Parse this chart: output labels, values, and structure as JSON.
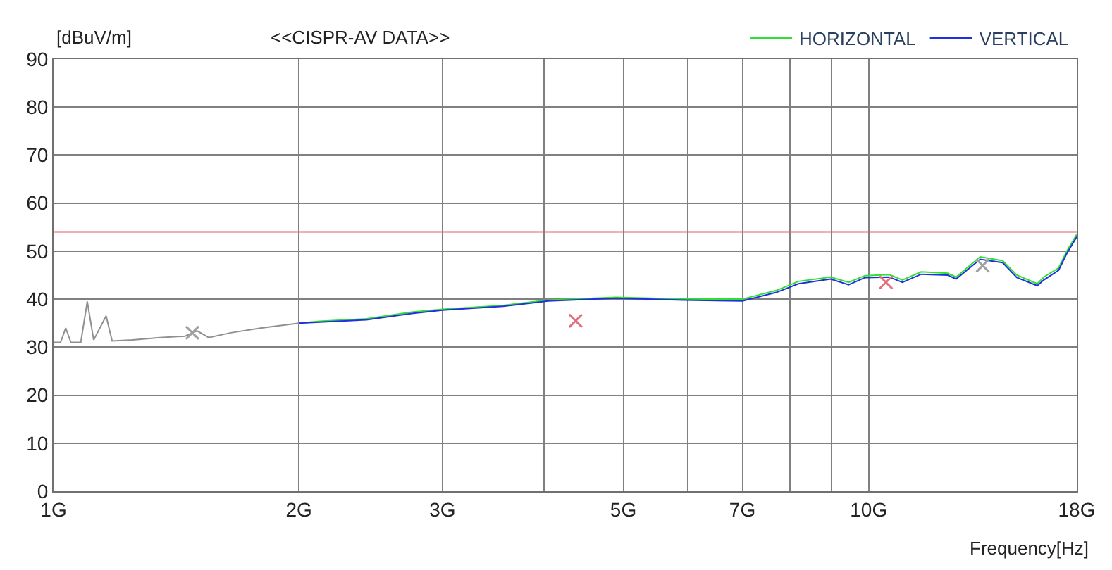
{
  "chart_data": {
    "type": "line",
    "title": "<<CISPR-AV DATA>>",
    "ylabel": "[dBuV/m]",
    "xlabel": "Frequency[Hz]",
    "log": "x",
    "xlim": [
      1,
      18
    ],
    "ylim": [
      0,
      90
    ],
    "xticks": [
      {
        "value": 1,
        "label": "1G"
      },
      {
        "value": 2,
        "label": "2G"
      },
      {
        "value": 3,
        "label": "3G"
      },
      {
        "value": 4,
        "label": null
      },
      {
        "value": 5,
        "label": "5G"
      },
      {
        "value": 6,
        "label": null
      },
      {
        "value": 7,
        "label": "7G"
      },
      {
        "value": 8,
        "label": null
      },
      {
        "value": 9,
        "label": null
      },
      {
        "value": 10,
        "label": "10G"
      },
      {
        "value": 18,
        "label": "18G"
      }
    ],
    "yticks": [
      0,
      10,
      20,
      30,
      40,
      50,
      60,
      70,
      80,
      90
    ],
    "grid": true,
    "legend": "top right",
    "ref_lines": [
      {
        "axis": "y",
        "value": 54,
        "color": "#e06070"
      }
    ],
    "series": [
      {
        "color": "#909090",
        "x": [
          1.0,
          1.02,
          1.035,
          1.05,
          1.08,
          1.1,
          1.12,
          1.16,
          1.18,
          1.25,
          1.35,
          1.45,
          1.5,
          1.55,
          1.65,
          1.8,
          2.0
        ],
        "values": [
          31,
          31,
          34,
          31,
          31,
          39.5,
          31.5,
          36.5,
          31.3,
          31.5,
          32,
          32.3,
          33.4,
          32,
          33,
          34,
          35
        ]
      },
      {
        "name": "HORIZONTAL",
        "color": "#30e030",
        "x": [
          2.0,
          2.12,
          2.42,
          2.75,
          3.0,
          3.56,
          4.04,
          4.9,
          5.93,
          7.0,
          7.7,
          8.2,
          8.98,
          9.45,
          9.9,
          10.6,
          11.0,
          11.6,
          12.5,
          12.8,
          13.7,
          14.6,
          15.2,
          16.1,
          16.4,
          17.1,
          17.5,
          18.0
        ],
        "values": [
          35,
          35.4,
          35.9,
          37.3,
          37.9,
          38.7,
          39.8,
          40.4,
          40,
          40,
          41.8,
          43.7,
          44.6,
          43.5,
          44.9,
          45.1,
          44,
          45.7,
          45.4,
          44.6,
          48.8,
          48,
          45,
          43.2,
          44.6,
          46.5,
          50,
          53.5
        ]
      },
      {
        "name": "VERTICAL",
        "color": "#2030e0",
        "x": [
          2.0,
          2.12,
          2.42,
          2.75,
          3.0,
          3.56,
          4.04,
          4.9,
          5.93,
          7.0,
          7.7,
          8.2,
          8.98,
          9.45,
          9.9,
          10.6,
          11.0,
          11.6,
          12.5,
          12.8,
          13.7,
          14.6,
          15.2,
          16.1,
          16.4,
          17.1,
          17.5,
          18.0
        ],
        "values": [
          35,
          35.2,
          35.7,
          37,
          37.7,
          38.5,
          39.6,
          40.2,
          39.8,
          39.6,
          41.4,
          43.2,
          44.2,
          43,
          44.5,
          44.6,
          43.5,
          45.2,
          45,
          44.2,
          48.3,
          47.6,
          44.5,
          42.8,
          44,
          46,
          49.5,
          53
        ]
      },
      {
        "type": "scatter",
        "color": "#e07080",
        "marker": "cross",
        "x": [
          4.37,
          10.5
        ],
        "values": [
          35.5,
          43.5
        ]
      },
      {
        "type": "scatter",
        "color": "#a0a0a0",
        "marker": "cross",
        "x": [
          1.48,
          13.8
        ],
        "values": [
          33,
          47
        ]
      }
    ]
  }
}
